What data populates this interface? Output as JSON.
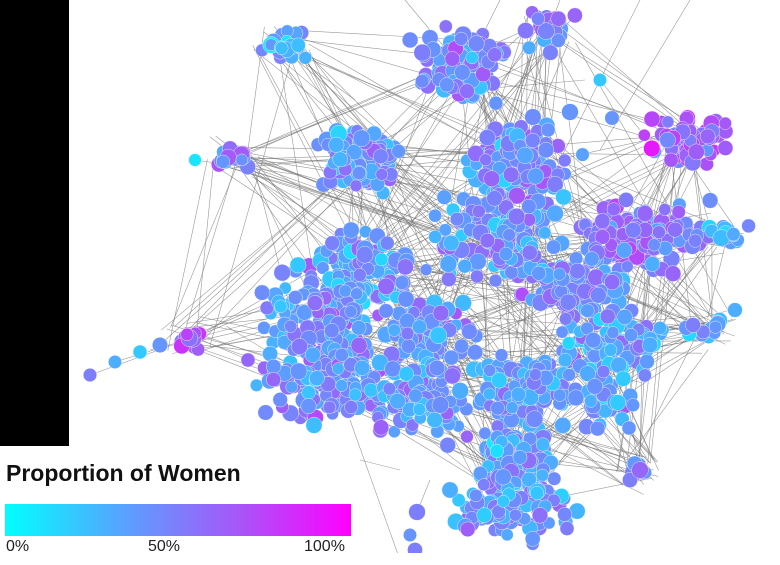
{
  "legend": {
    "title": "Proportion of Women",
    "ticks": [
      "0%",
      "50%",
      "100%"
    ],
    "gradient_colors": [
      "#00ffff",
      "#5aa0ff",
      "#a855f7",
      "#ff00ff"
    ]
  },
  "network": {
    "edge_color": "#777777",
    "node_stroke": "#ffffff"
  }
}
